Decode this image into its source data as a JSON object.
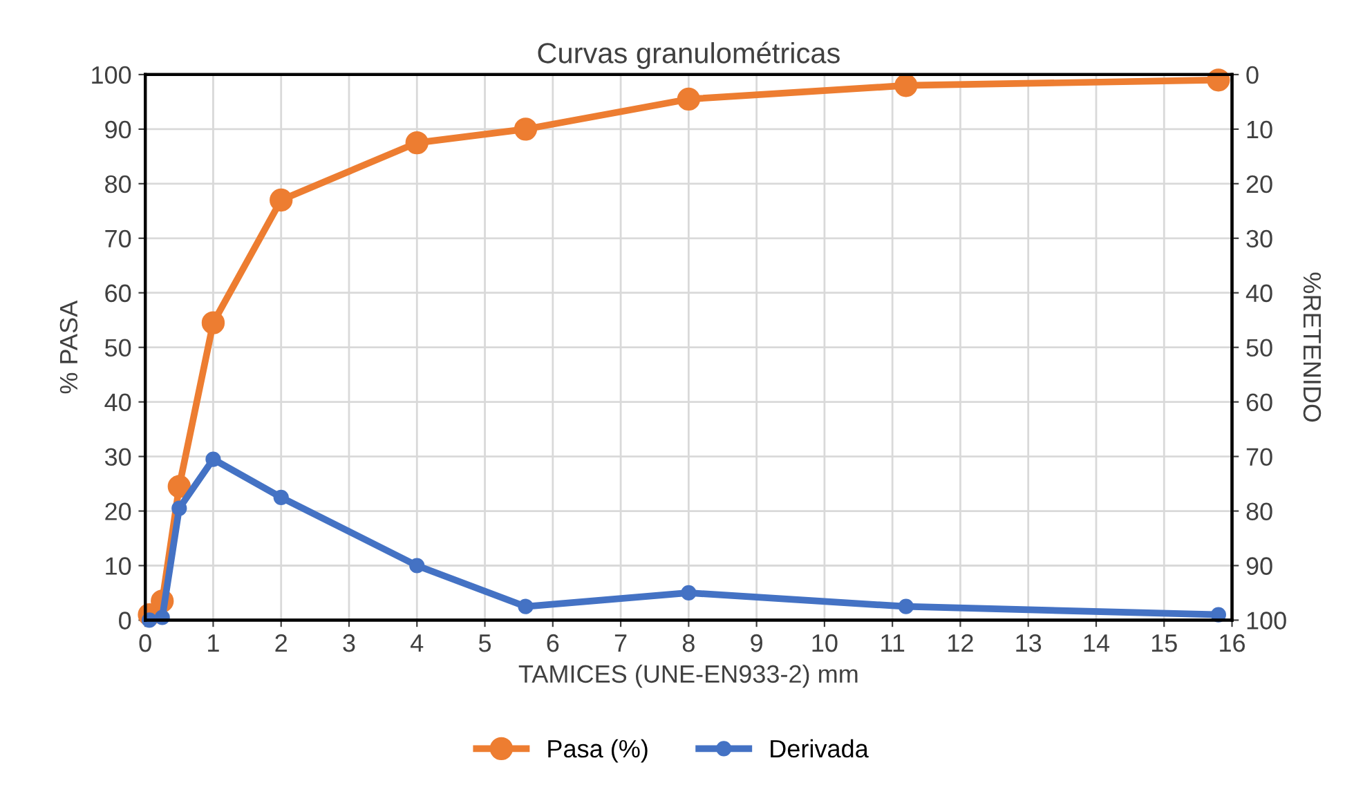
{
  "chart_data": {
    "type": "line",
    "title": "Curvas granulométricas",
    "xlabel": "TAMICES (UNE-EN933-2) mm",
    "ylabel": "% PASA",
    "y2label": "%RETENIDO",
    "series": [
      {
        "name": "Pasa (%)",
        "color": "#ed7d31",
        "x": [
          0.06,
          0.25,
          0.5,
          1,
          2,
          4,
          5.6,
          8,
          11.2,
          15.8
        ],
        "values": [
          1,
          3.5,
          24.5,
          54.5,
          77,
          87.5,
          90,
          95.5,
          98,
          99
        ]
      },
      {
        "name": "Derivada",
        "color": "#4472c4",
        "x": [
          0.06,
          0.25,
          0.5,
          1,
          2,
          4,
          5.6,
          8,
          11.2,
          15.8
        ],
        "values": [
          0,
          0.5,
          20.5,
          29.5,
          22.5,
          10,
          2.5,
          5,
          2.5,
          1
        ]
      }
    ],
    "xlim": [
      0,
      16
    ],
    "xticks": [
      0,
      1,
      2,
      3,
      4,
      5,
      6,
      7,
      8,
      9,
      10,
      11,
      12,
      13,
      14,
      15,
      16
    ],
    "ylim": [
      0,
      100
    ],
    "yticks": [
      0,
      10,
      20,
      30,
      40,
      50,
      60,
      70,
      80,
      90,
      100
    ],
    "y2lim": [
      100,
      0
    ],
    "y2ticks": [
      0,
      10,
      20,
      30,
      40,
      50,
      60,
      70,
      80,
      90,
      100
    ],
    "grid": true,
    "legend": "bottom",
    "marker": "circle",
    "line_style": "solid"
  }
}
